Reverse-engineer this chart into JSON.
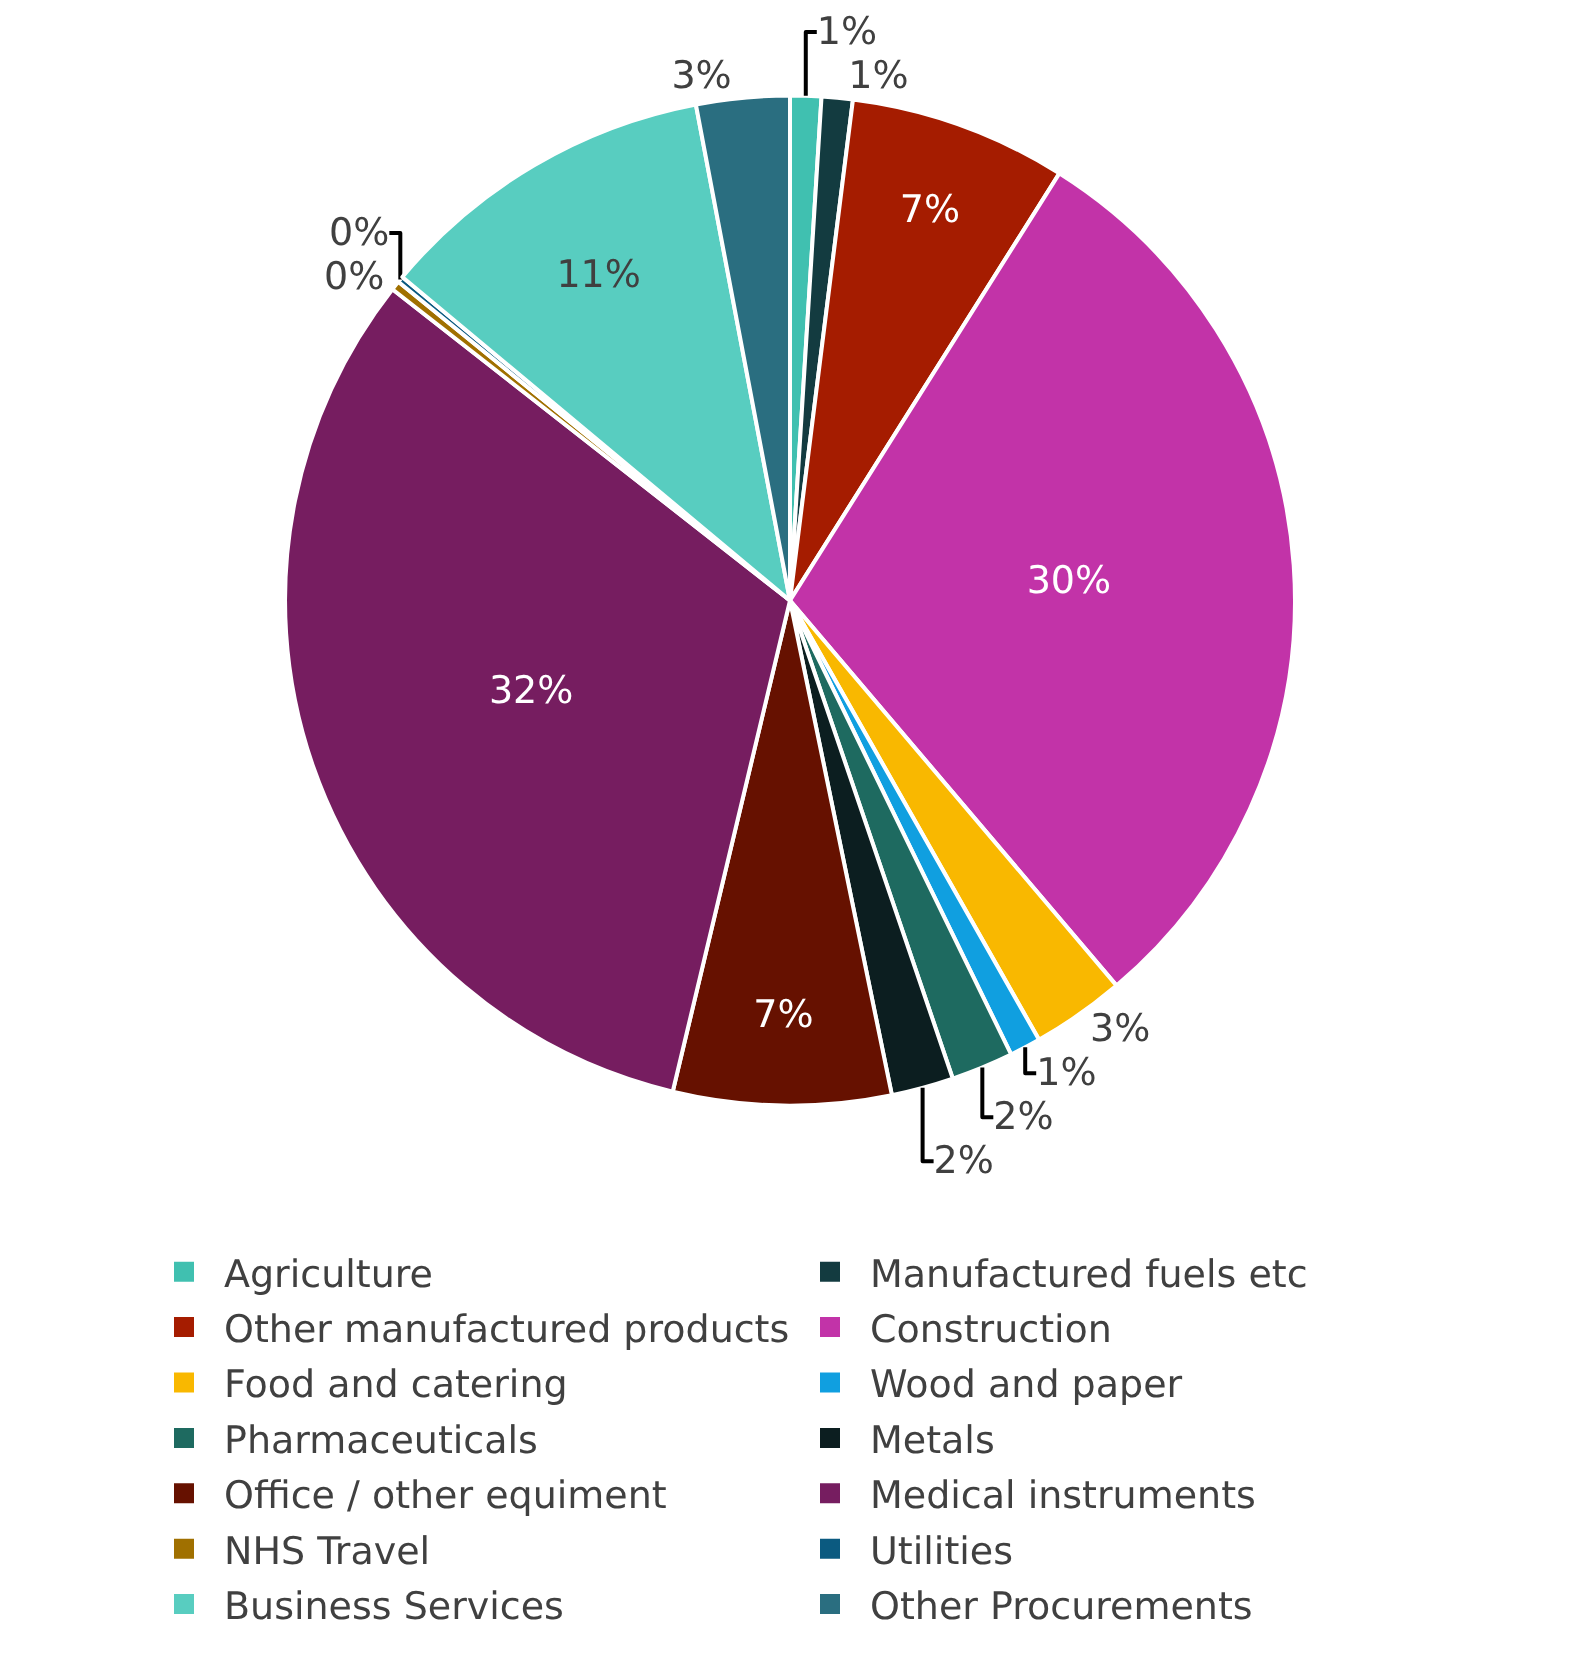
{
  "chart_data": {
    "type": "pie",
    "categories": [
      "Agriculture",
      "Manufactured fuels etc",
      "Other manufactured products",
      "Construction",
      "Food and catering",
      "Wood and paper",
      "Pharmaceuticals",
      "Metals",
      "Office / other equiment",
      "Medical instruments",
      "NHS Travel",
      "Utilities",
      "Business Services",
      "Other Procurements"
    ],
    "values": [
      1,
      1,
      7,
      30,
      3,
      1,
      2,
      2,
      7,
      32,
      0.3,
      0.2,
      11,
      3
    ],
    "value_labels": [
      "1%",
      "1%",
      "7%",
      "30%",
      "3%",
      "1%",
      "2%",
      "2%",
      "7%",
      "32%",
      "0%",
      "0%",
      "11%",
      "3%"
    ],
    "colors": [
      "#40c0b0",
      "#133b40",
      "#a51c00",
      "#c233a8",
      "#f9b800",
      "#109fe0",
      "#1e6a60",
      "#0c1e20",
      "#661100",
      "#761d60",
      "#a07000",
      "#0b5a80",
      "#58cdc0",
      "#2a6e80"
    ],
    "legend": "bottom"
  }
}
